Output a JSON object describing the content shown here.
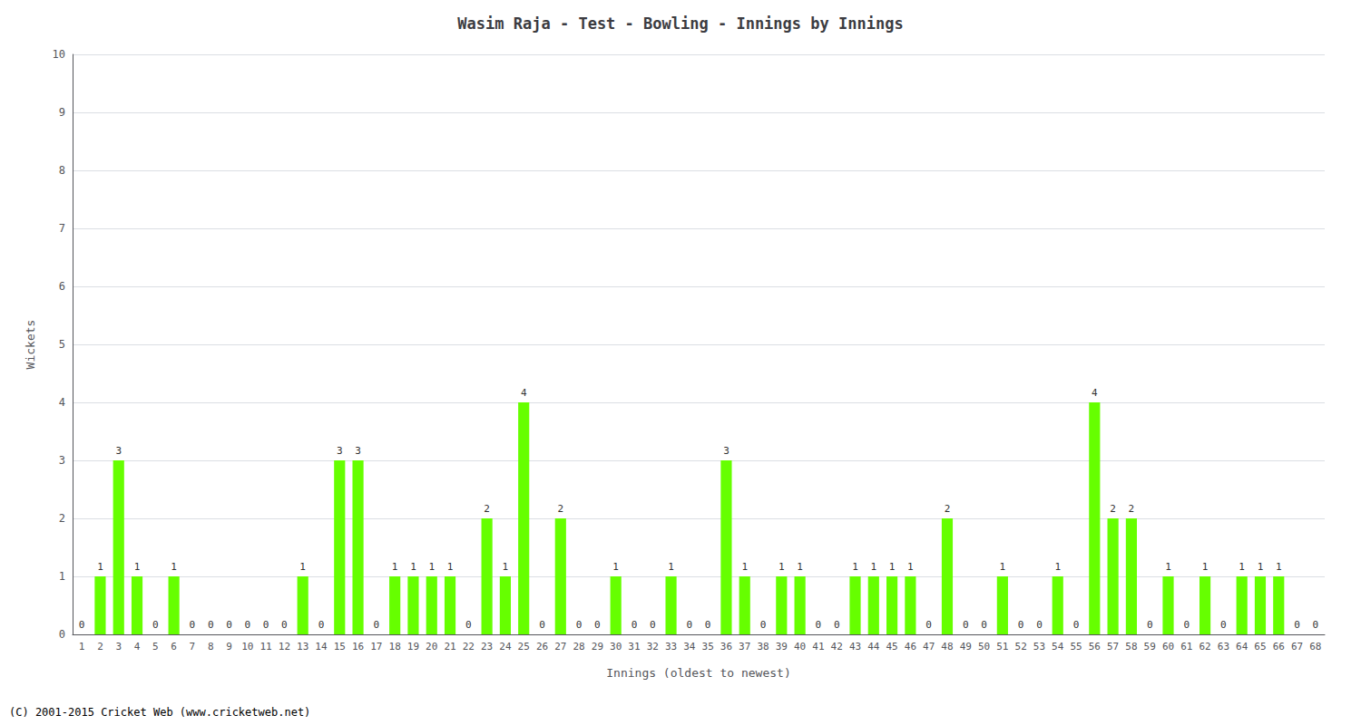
{
  "chart_data": {
    "type": "bar",
    "title": "Wasim Raja - Test - Bowling - Innings by Innings",
    "xlabel": "Innings (oldest to newest)",
    "ylabel": "Wickets",
    "categories": [
      "1",
      "2",
      "3",
      "4",
      "5",
      "6",
      "7",
      "8",
      "9",
      "10",
      "11",
      "12",
      "13",
      "14",
      "15",
      "16",
      "17",
      "18",
      "19",
      "20",
      "21",
      "22",
      "23",
      "24",
      "25",
      "26",
      "27",
      "28",
      "29",
      "30",
      "31",
      "32",
      "33",
      "34",
      "35",
      "36",
      "37",
      "38",
      "39",
      "40",
      "41",
      "42",
      "43",
      "44",
      "45",
      "46",
      "47",
      "48",
      "49",
      "50",
      "51",
      "52",
      "53",
      "54",
      "55",
      "56",
      "57",
      "58",
      "59",
      "60",
      "61",
      "62",
      "63",
      "64",
      "65",
      "66",
      "67",
      "68"
    ],
    "values": [
      0,
      1,
      3,
      1,
      0,
      1,
      0,
      0,
      0,
      0,
      0,
      0,
      1,
      0,
      3,
      3,
      0,
      1,
      1,
      1,
      1,
      0,
      2,
      1,
      4,
      0,
      2,
      0,
      0,
      1,
      0,
      0,
      1,
      0,
      0,
      3,
      1,
      0,
      1,
      1,
      0,
      0,
      1,
      1,
      1,
      1,
      0,
      2,
      0,
      0,
      1,
      0,
      0,
      1,
      0,
      4,
      2,
      2,
      0,
      1,
      0,
      1,
      0,
      1,
      1,
      1,
      0,
      0
    ],
    "color": "#66ff00",
    "ylim": [
      0,
      10
    ],
    "yticks": [
      0,
      1,
      2,
      3,
      4,
      5,
      6,
      7,
      8,
      9,
      10
    ],
    "grid": true,
    "data_labels": true,
    "annotations": [
      "(C) 2001-2015 Cricket Web (www.cricketweb.net)"
    ]
  }
}
